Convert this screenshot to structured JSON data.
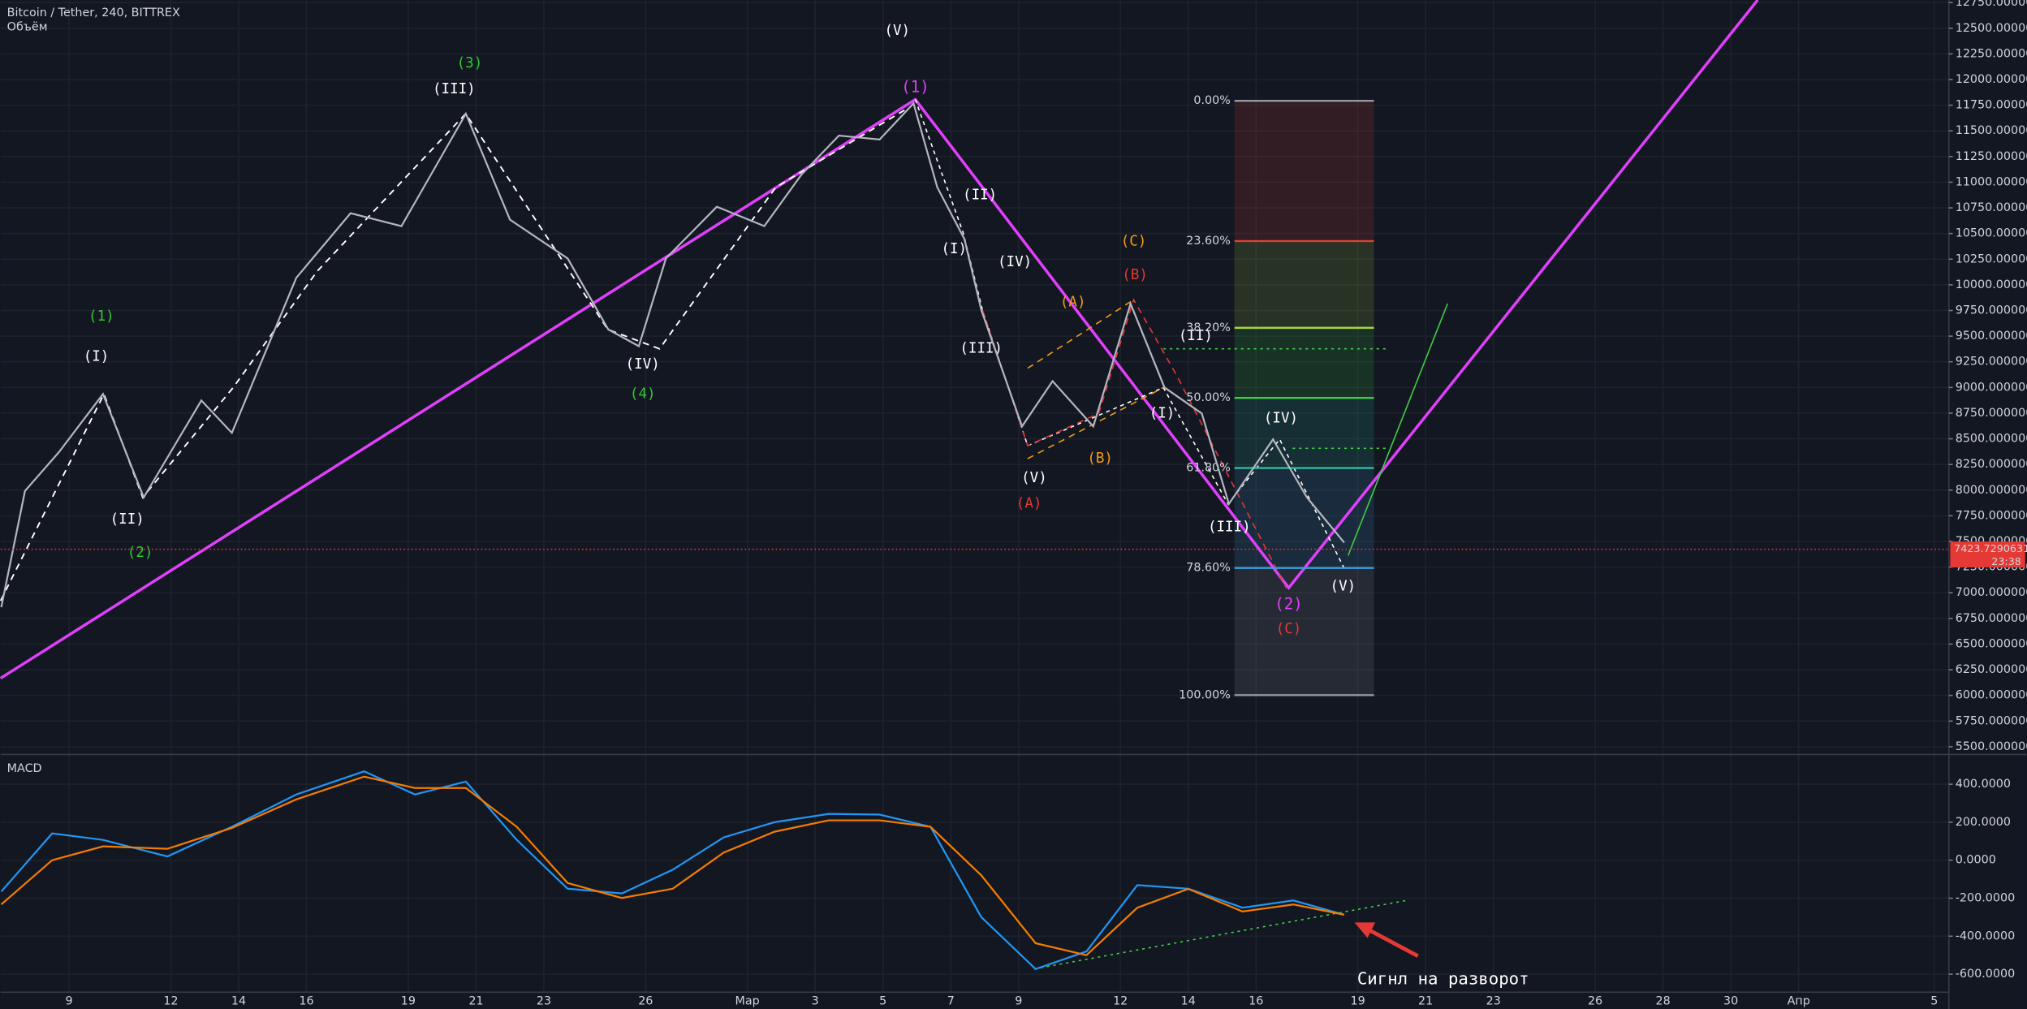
{
  "chart_data": [
    {
      "type": "line",
      "title": "Bitcoin / Tether, 240, BITTREX",
      "subtitle": "Объём",
      "color": "#b2b5be",
      "grid": true,
      "x": [
        -2.0,
        -1.3,
        -0.3,
        1.0,
        2.2,
        3.9,
        4.8,
        6.7,
        8.3,
        9.8,
        11.7,
        13.0,
        14.7,
        15.9,
        16.8,
        17.6,
        19.1,
        20.5,
        21.6,
        22.7,
        23.9,
        24.9,
        25.6,
        26.4,
        26.9,
        28.1,
        29.0,
        30.2,
        31.3,
        32.3,
        33.4,
        34.2,
        35.5,
        36.5,
        37.6
      ],
      "series": [
        {
          "color": "#b2b5be",
          "values": [
            6859,
            7992,
            8370,
            8936,
            7929,
            8873,
            8558,
            10069,
            10698,
            10572,
            11667,
            10635,
            10258,
            9565,
            9402,
            10258,
            10761,
            10572,
            11076,
            11454,
            11416,
            11768,
            10950,
            10447,
            9754,
            8621,
            9062,
            8621,
            9817,
            9000,
            8747,
            7866,
            8495,
            7929,
            7489
          ]
        }
      ],
      "xlim": [
        -2.02,
        55.43
      ],
      "xticks": [
        {
          "value": 0,
          "label": "9"
        },
        {
          "value": 3,
          "label": "12"
        },
        {
          "value": 5,
          "label": "14"
        },
        {
          "value": 7,
          "label": "16"
        },
        {
          "value": 10,
          "label": "19"
        },
        {
          "value": 12,
          "label": "21"
        },
        {
          "value": 14,
          "label": "23"
        },
        {
          "value": 17,
          "label": "26"
        },
        {
          "value": 20,
          "label": "Мар"
        },
        {
          "value": 22,
          "label": "3"
        },
        {
          "value": 24,
          "label": "5"
        },
        {
          "value": 26,
          "label": "7"
        },
        {
          "value": 28,
          "label": "9"
        },
        {
          "value": 31,
          "label": "12"
        },
        {
          "value": 33,
          "label": "14"
        },
        {
          "value": 35,
          "label": "16"
        },
        {
          "value": 38,
          "label": "19"
        },
        {
          "value": 40,
          "label": "21"
        },
        {
          "value": 42,
          "label": "23"
        },
        {
          "value": 45,
          "label": "26"
        },
        {
          "value": 47,
          "label": "28"
        },
        {
          "value": 49,
          "label": "30"
        },
        {
          "value": 51,
          "label": "Апр"
        },
        {
          "value": 55,
          "label": "5"
        }
      ],
      "ylim": [
        5437,
        12775
      ],
      "yticks": [
        {
          "value": 5500,
          "label": "5500.00000000"
        },
        {
          "value": 5750,
          "label": "5750.00000000"
        },
        {
          "value": 6000,
          "label": "6000.00000000"
        },
        {
          "value": 6250,
          "label": "6250.00000000"
        },
        {
          "value": 6500,
          "label": "6500.00000000"
        },
        {
          "value": 6750,
          "label": "6750.00000000"
        },
        {
          "value": 7000,
          "label": "7000.00000000"
        },
        {
          "value": 7250,
          "label": "7250.00000000"
        },
        {
          "value": 7500,
          "label": "7500.00000000"
        },
        {
          "value": 7750,
          "label": "7750.00000000"
        },
        {
          "value": 8000,
          "label": "8000.00000000"
        },
        {
          "value": 8250,
          "label": "8250.00000000"
        },
        {
          "value": 8500,
          "label": "8500.00000000"
        },
        {
          "value": 8750,
          "label": "8750.00000000"
        },
        {
          "value": 9000,
          "label": "9000.00000000"
        },
        {
          "value": 9250,
          "label": "9250.00000000"
        },
        {
          "value": 9500,
          "label": "9500.00000000"
        },
        {
          "value": 9750,
          "label": "9750.00000000"
        },
        {
          "value": 10000,
          "label": "10000.00000000"
        },
        {
          "value": 10250,
          "label": "10250.00000000"
        },
        {
          "value": 10500,
          "label": "10500.00000000"
        },
        {
          "value": 10750,
          "label": "10750.00000000"
        },
        {
          "value": 11000,
          "label": "11000.00000000"
        },
        {
          "value": 11250,
          "label": "11250.00000000"
        },
        {
          "value": 11500,
          "label": "11500.00000000"
        },
        {
          "value": 11750,
          "label": "11750.00000000"
        },
        {
          "value": 12000,
          "label": "12000.00000000"
        },
        {
          "value": 12250,
          "label": "12250.00000000"
        },
        {
          "value": 12500,
          "label": "12500.00000000"
        },
        {
          "value": 12750,
          "label": "12750.00000000"
        }
      ],
      "last_price": 7423.72906319,
      "time_left": "23:38",
      "fib": [
        {
          "label": "0.00%",
          "value": 11793,
          "color": "#9598a1"
        },
        {
          "label": "23.60%",
          "value": 10427,
          "color": "#e0402f"
        },
        {
          "label": "38.20%",
          "value": 9581,
          "color": "#a5d63a"
        },
        {
          "label": "50.00%",
          "value": 8898,
          "color": "#3fce45"
        },
        {
          "label": "61.80%",
          "value": 8215,
          "color": "#2bbfa0"
        },
        {
          "label": "78.60%",
          "value": 7242,
          "color": "#3a9fd8"
        },
        {
          "label": "100.00%",
          "value": 6003,
          "color": "#9598a1"
        }
      ],
      "annotations": [
        "(V)",
        "(3)",
        "(III)",
        "(1)",
        "(II)",
        "(C)",
        "(I)",
        "(IV)",
        "(B)",
        "(A)",
        "(1)",
        "(I)",
        "(III)",
        "(II)",
        "(IV)",
        "(4)",
        "(I)",
        "(IV)",
        "(B)",
        "(V)",
        "(A)",
        "(II)",
        "(III)",
        "(2)",
        "(2)",
        "(V)",
        "(C)",
        "Сигнл на разворот"
      ]
    },
    {
      "type": "line",
      "title": "MACD",
      "grid": true,
      "x": [
        -2.0,
        -0.5,
        1.0,
        2.9,
        4.8,
        6.7,
        8.7,
        10.2,
        11.7,
        13.2,
        14.7,
        16.3,
        17.8,
        19.3,
        20.8,
        22.4,
        23.9,
        25.4,
        26.9,
        28.5,
        30.0,
        31.5,
        33.0,
        34.6,
        36.1,
        37.6
      ],
      "series": [
        {
          "color": "#2196f3",
          "values": [
            -165,
            141,
            107,
            20,
            176,
            346,
            468,
            346,
            414,
            107,
            -150,
            -175,
            -50,
            120,
            200,
            244,
            240,
            176,
            -300,
            -573,
            -480,
            -131,
            -150,
            -250,
            -212,
            -287
          ]
        },
        {
          "color": "#f57c00",
          "values": [
            -233,
            0,
            73,
            60,
            170,
            320,
            440,
            380,
            380,
            176,
            -120,
            -199,
            -150,
            40,
            150,
            210,
            210,
            176,
            -80,
            -437,
            -500,
            -250,
            -151,
            -270,
            -233,
            -287
          ]
        }
      ],
      "ylim": [
        -695,
        543
      ],
      "yticks": [
        {
          "value": 400,
          "label": "400.0000"
        },
        {
          "value": 200,
          "label": "200.0000"
        },
        {
          "value": 0,
          "label": "0.0000"
        },
        {
          "value": -200,
          "label": "-200.0000"
        },
        {
          "value": -400,
          "label": "-400.0000"
        },
        {
          "value": -600,
          "label": "-600.0000"
        }
      ]
    }
  ]
}
